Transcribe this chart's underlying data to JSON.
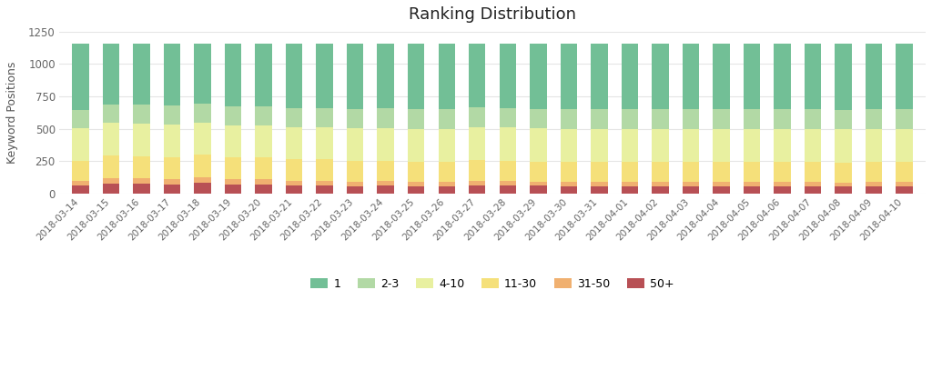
{
  "title": "Ranking Distribution",
  "ylabel": "Keyword Positions",
  "dates": [
    "2018-03-14",
    "2018-03-15",
    "2018-03-16",
    "2018-03-17",
    "2018-03-18",
    "2018-03-19",
    "2018-03-20",
    "2018-03-21",
    "2018-03-22",
    "2018-03-23",
    "2018-03-24",
    "2018-03-25",
    "2018-03-26",
    "2018-03-27",
    "2018-03-28",
    "2018-03-29",
    "2018-03-30",
    "2018-03-31",
    "2018-04-01",
    "2018-04-02",
    "2018-04-03",
    "2018-04-04",
    "2018-04-05",
    "2018-04-06",
    "2018-04-07",
    "2018-04-08",
    "2018-04-09",
    "2018-04-10"
  ],
  "series": {
    "50+": [
      60,
      75,
      75,
      70,
      80,
      70,
      70,
      60,
      60,
      55,
      60,
      55,
      55,
      60,
      65,
      60,
      58,
      58,
      58,
      58,
      58,
      58,
      58,
      58,
      58,
      55,
      58,
      58
    ],
    "31-50": [
      35,
      40,
      40,
      38,
      45,
      38,
      38,
      38,
      38,
      35,
      35,
      32,
      32,
      38,
      35,
      33,
      33,
      33,
      33,
      33,
      33,
      33,
      33,
      33,
      33,
      30,
      33,
      33
    ],
    "11-30": [
      155,
      180,
      175,
      175,
      175,
      170,
      170,
      165,
      165,
      165,
      155,
      155,
      155,
      160,
      155,
      155,
      155,
      155,
      155,
      155,
      155,
      155,
      155,
      155,
      155,
      155,
      155,
      155
    ],
    "4-10": [
      255,
      250,
      248,
      248,
      248,
      248,
      248,
      248,
      248,
      248,
      255,
      255,
      255,
      255,
      255,
      255,
      255,
      255,
      255,
      255,
      255,
      255,
      255,
      255,
      255,
      255,
      255,
      255
    ],
    "2-3": [
      140,
      145,
      148,
      148,
      148,
      148,
      148,
      148,
      148,
      148,
      152,
      152,
      152,
      152,
      152,
      152,
      148,
      148,
      148,
      148,
      148,
      148,
      148,
      148,
      148,
      148,
      148,
      148
    ],
    "1": [
      510,
      465,
      469,
      476,
      459,
      481,
      481,
      496,
      496,
      504,
      498,
      506,
      506,
      490,
      493,
      500,
      506,
      506,
      506,
      506,
      506,
      506,
      506,
      506,
      506,
      512,
      506,
      506
    ]
  },
  "colors": {
    "1": "#72bf96",
    "2-3": "#b2d9a5",
    "4-10": "#e8f0a0",
    "11-30": "#f5e07a",
    "31-50": "#f0b070",
    "50+": "#b85055"
  },
  "ylim": [
    0,
    1250
  ],
  "yticks": [
    0,
    250,
    500,
    750,
    1000,
    1250
  ],
  "background_color": "#ffffff",
  "grid_color": "#e5e5e5",
  "bar_width": 0.55
}
